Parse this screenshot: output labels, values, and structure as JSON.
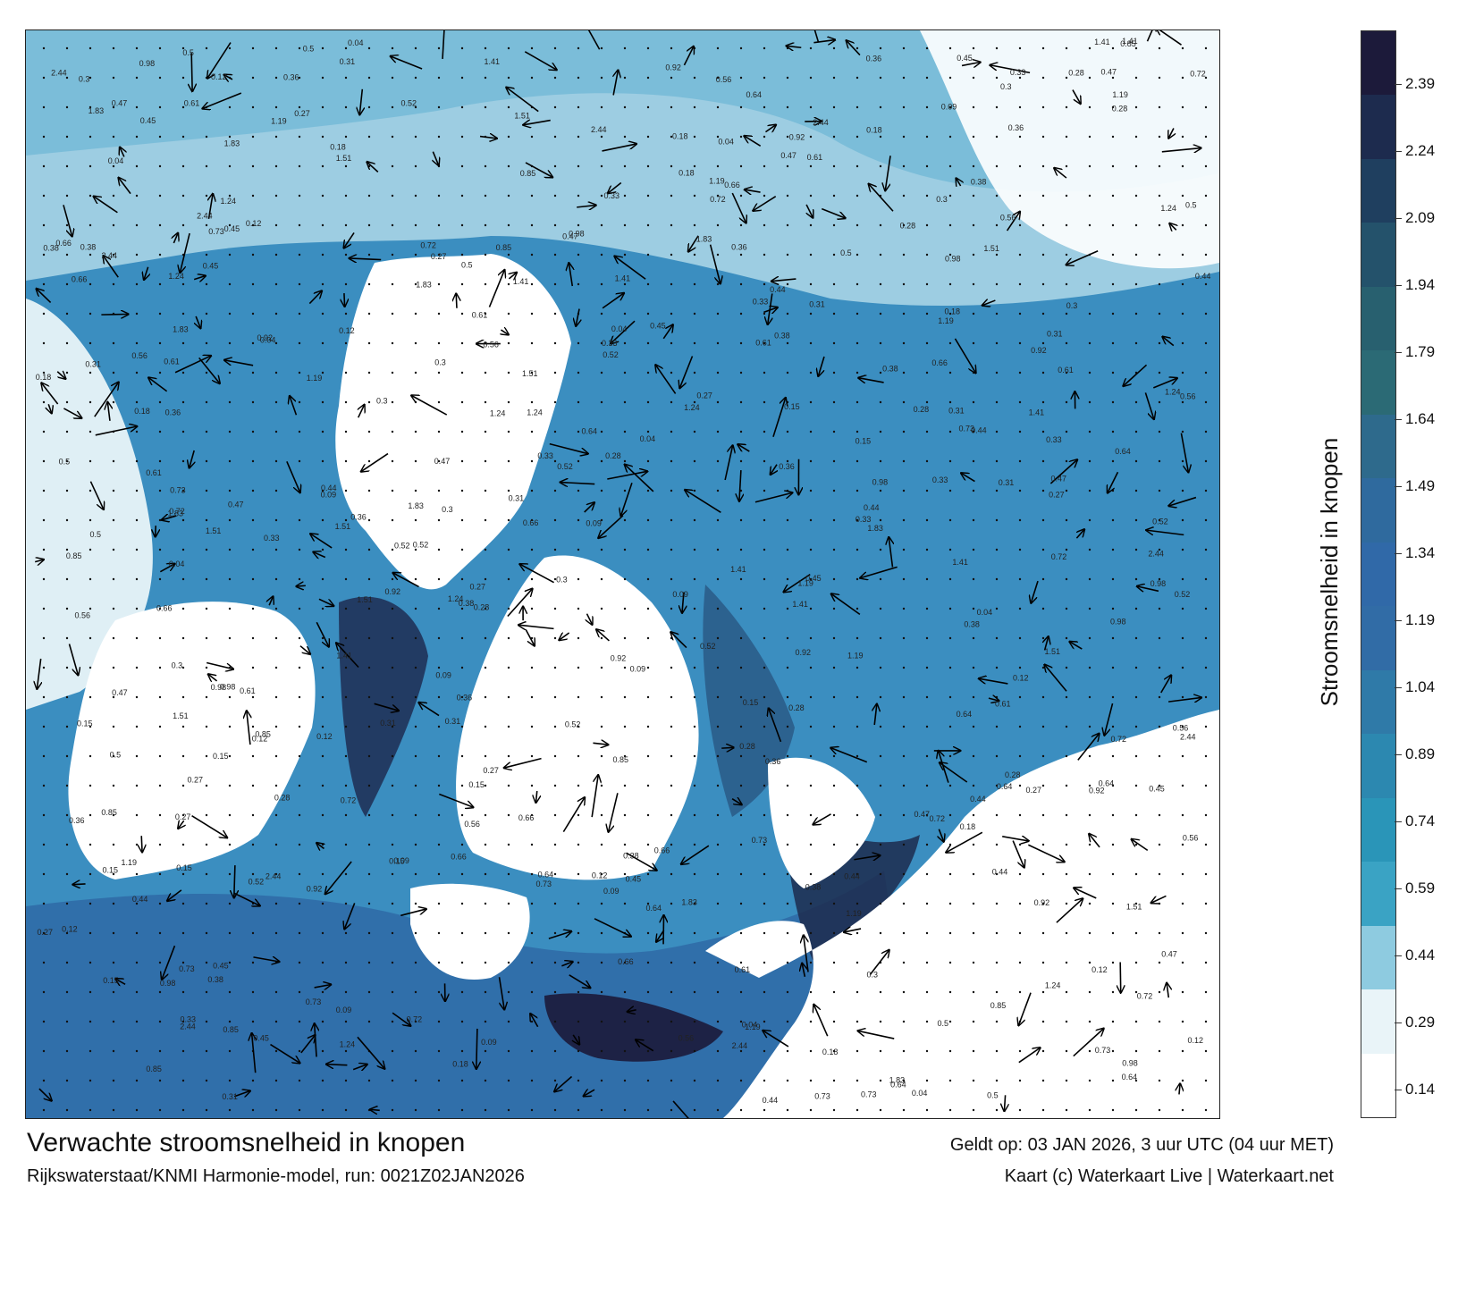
{
  "map": {
    "title": "Verwachte stroomsnelheid in knopen",
    "subtitle": "Rijkswaterstaat/KNMI Harmonie-model, run: 0021Z02JAN2026",
    "valid_time": "Geldt op: 03 JAN 2026, 3 uur UTC (04 uur MET)",
    "credit": "Kaart (c) Waterkaart Live | Waterkaart.net",
    "sample_labels": [
      "0.45",
      "0.33",
      "0.38",
      "0.3",
      "0.52",
      "0.5",
      "0.44",
      "0.31",
      "0.28",
      "0.36",
      "0.18",
      "0.15",
      "1.24",
      "1.83",
      "2.44",
      "0.73",
      "0.92",
      "0.98",
      "0.56",
      "0.64",
      "0.85",
      "1.51",
      "1.19",
      "0.61",
      "0.47",
      "0.27",
      "0.12",
      "0.09",
      "0.66",
      "1.41",
      "0.72",
      "0.04"
    ]
  },
  "legend": {
    "label": "Stroomsnelheid in knopen",
    "ticks": [
      "2.39",
      "2.24",
      "2.09",
      "1.94",
      "1.79",
      "1.64",
      "1.49",
      "1.34",
      "1.19",
      "1.04",
      "0.89",
      "0.74",
      "0.59",
      "0.44",
      "0.29",
      "0.14"
    ],
    "colors": [
      "#1c1a3a",
      "#1d2b4e",
      "#1f3f5f",
      "#24526b",
      "#28606f",
      "#2b6a75",
      "#2e6a8c",
      "#2f6a9e",
      "#3069a8",
      "#316ca6",
      "#2f7aa8",
      "#2c88b0",
      "#2a95b8",
      "#3aa3c4",
      "#8ecbe0",
      "#e9f4f8"
    ]
  }
}
